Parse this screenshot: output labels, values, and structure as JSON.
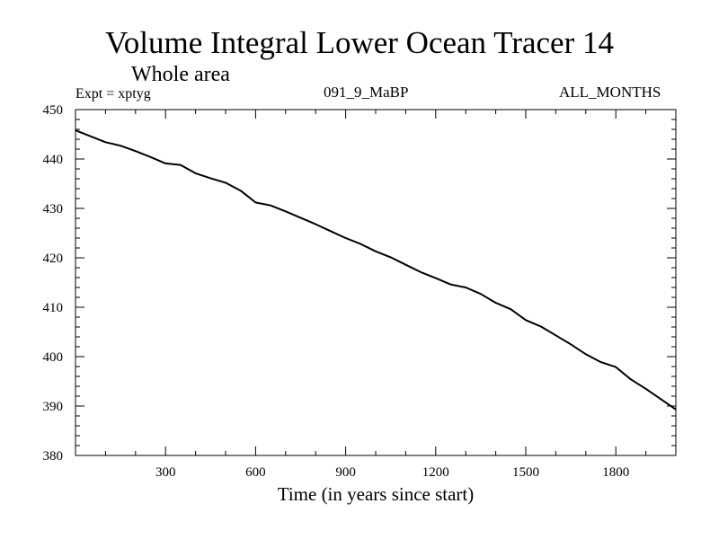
{
  "chart_data": {
    "type": "line",
    "title": "Volume Integral Lower Ocean Tracer 14",
    "subtitle": "Whole area",
    "annotations": {
      "left": "Expt = xptyg",
      "center": "091_9_MaBP",
      "right": "ALL_MONTHS"
    },
    "xlabel": "Time (in years since start)",
    "ylabel": "",
    "xlim": [
      0,
      2000
    ],
    "ylim": [
      380,
      450
    ],
    "x_ticks": [
      300,
      600,
      900,
      1200,
      1500,
      1800
    ],
    "y_ticks": [
      380,
      390,
      400,
      410,
      420,
      430,
      440,
      450
    ],
    "grid": false,
    "line_color": "#000000",
    "series": [
      {
        "x": [
          0,
          50,
          100,
          150,
          200,
          250,
          300,
          350,
          400,
          450,
          500,
          550,
          600,
          650,
          700,
          750,
          800,
          850,
          900,
          950,
          1000,
          1050,
          1100,
          1150,
          1200,
          1250,
          1300,
          1350,
          1400,
          1450,
          1500,
          1550,
          1600,
          1650,
          1700,
          1750,
          1800,
          1850,
          1900,
          1950,
          2000
        ],
        "y": [
          445.8,
          444.6,
          443.4,
          442.7,
          441.6,
          440.4,
          439.1,
          438.8,
          437.1,
          436.1,
          435.2,
          433.6,
          431.2,
          430.6,
          429.4,
          428.1,
          426.8,
          425.4,
          424.0,
          422.8,
          421.3,
          420.1,
          418.6,
          417.1,
          415.9,
          414.6,
          414.0,
          412.7,
          410.9,
          409.6,
          407.4,
          406.1,
          404.3,
          402.5,
          400.5,
          398.9,
          397.9,
          395.4,
          393.5,
          391.4,
          389.3
        ]
      }
    ]
  }
}
